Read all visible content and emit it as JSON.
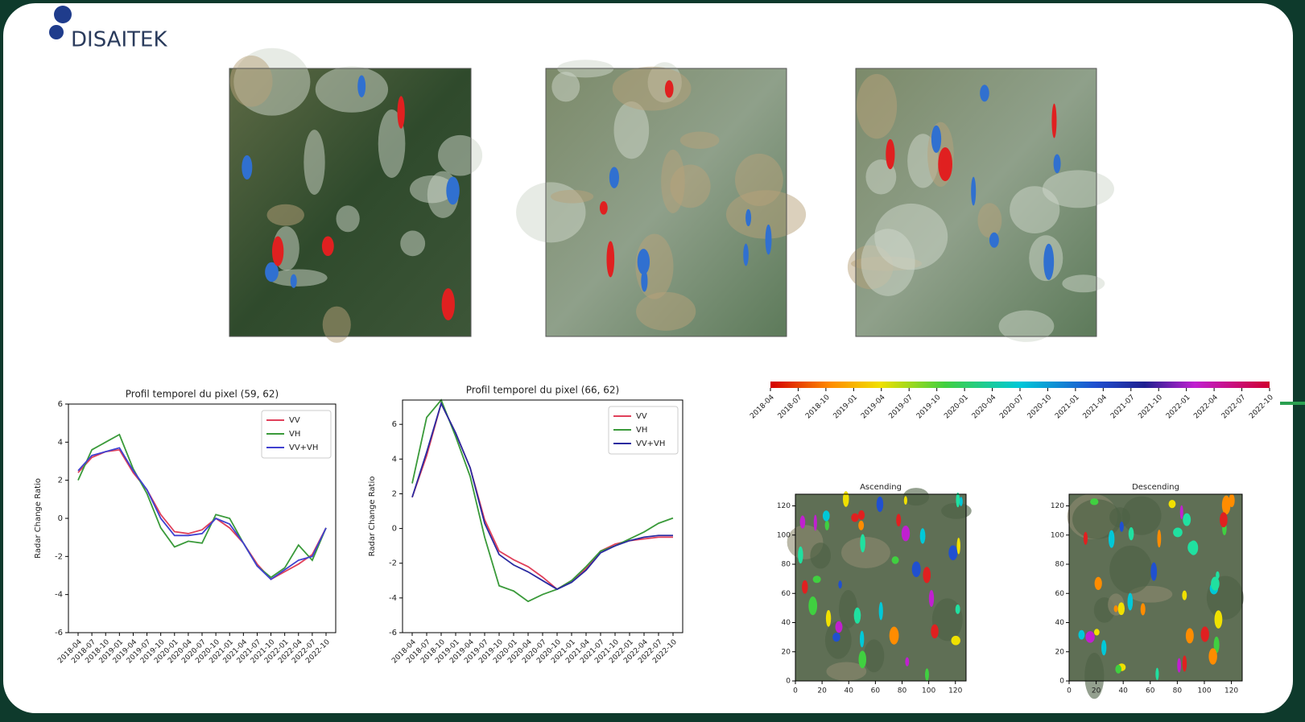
{
  "logo": "DISAITEK",
  "chart_data": [
    {
      "type": "line",
      "title": "Profil temporel du pixel (59, 62)",
      "y_label": "Radar Change Ratio",
      "categories": [
        "2018-04",
        "2018-07",
        "2018-10",
        "2019-01",
        "2019-04",
        "2019-07",
        "2019-10",
        "2020-01",
        "2020-04",
        "2020-07",
        "2020-10",
        "2021-01",
        "2021-04",
        "2021-07",
        "2021-10",
        "2022-01",
        "2022-04",
        "2022-07",
        "2022-10"
      ],
      "series": [
        {
          "name": "VV",
          "color": "#e0405a",
          "values": [
            2.4,
            3.2,
            3.5,
            3.6,
            2.4,
            1.5,
            0.2,
            -0.7,
            -0.8,
            -0.6,
            0.0,
            -0.5,
            -1.3,
            -2.4,
            -3.2,
            -2.8,
            -2.4,
            -1.9,
            -0.5
          ]
        },
        {
          "name": "VH",
          "color": "#3a9a3a",
          "values": [
            2.0,
            3.6,
            4.0,
            4.4,
            2.6,
            1.3,
            -0.5,
            -1.5,
            -1.2,
            -1.3,
            0.2,
            0.0,
            -1.3,
            -2.5,
            -3.1,
            -2.6,
            -1.4,
            -2.2,
            -0.5
          ]
        },
        {
          "name": "VV+VH",
          "color": "#4040d0",
          "values": [
            2.5,
            3.3,
            3.5,
            3.7,
            2.5,
            1.5,
            0.0,
            -0.9,
            -0.9,
            -0.8,
            0.0,
            -0.3,
            -1.3,
            -2.5,
            -3.2,
            -2.7,
            -2.2,
            -2.0,
            -0.5
          ]
        }
      ],
      "ylim": [
        -6,
        6
      ],
      "yticks": [
        -6,
        -4,
        -2,
        0,
        2,
        4,
        6
      ],
      "legend": "upper right"
    },
    {
      "type": "line",
      "title": "Profil temporel du pixel (66, 62)",
      "y_label": "Radar Change Ratio",
      "categories": [
        "2018-04",
        "2018-07",
        "2018-10",
        "2019-01",
        "2019-04",
        "2019-07",
        "2019-10",
        "2020-01",
        "2020-04",
        "2020-07",
        "2020-10",
        "2021-01",
        "2021-04",
        "2021-07",
        "2021-10",
        "2022-01",
        "2022-04",
        "2022-07",
        "2022-10"
      ],
      "series": [
        {
          "name": "VV",
          "color": "#e0405a",
          "values": [
            1.8,
            4.2,
            7.2,
            5.5,
            3.5,
            0.5,
            -1.3,
            -1.8,
            -2.2,
            -2.8,
            -3.5,
            -3.0,
            -2.3,
            -1.3,
            -0.9,
            -0.7,
            -0.6,
            -0.5,
            -0.5
          ]
        },
        {
          "name": "VH",
          "color": "#3a9a3a",
          "values": [
            2.6,
            6.4,
            7.4,
            5.3,
            3.0,
            -0.5,
            -3.3,
            -3.6,
            -4.2,
            -3.8,
            -3.5,
            -3.0,
            -2.2,
            -1.3,
            -1.0,
            -0.6,
            -0.2,
            0.3,
            0.6
          ]
        },
        {
          "name": "VV+VH",
          "color": "#2a2aa0",
          "values": [
            1.8,
            4.4,
            7.2,
            5.5,
            3.5,
            0.3,
            -1.5,
            -2.1,
            -2.5,
            -3.0,
            -3.5,
            -3.1,
            -2.4,
            -1.4,
            -1.0,
            -0.7,
            -0.5,
            -0.4,
            -0.4
          ]
        }
      ],
      "ylim": [
        -6,
        7.4
      ],
      "yticks": [
        -6,
        -4,
        -2,
        0,
        2,
        4,
        6
      ],
      "legend": "upper right"
    },
    {
      "type": "colorbar",
      "categories": [
        "2018-04",
        "2018-07",
        "2018-10",
        "2019-01",
        "2019-04",
        "2019-07",
        "2019-10",
        "2020-01",
        "2020-04",
        "2020-07",
        "2020-10",
        "2021-01",
        "2021-04",
        "2021-07",
        "2021-10",
        "2022-01",
        "2022-04",
        "2022-07",
        "2022-10"
      ]
    },
    {
      "type": "image",
      "title": "Ascending",
      "xlim": [
        0,
        128
      ],
      "ylim": [
        0,
        128
      ],
      "xticks": [
        0,
        20,
        40,
        60,
        80,
        100,
        120
      ],
      "yticks": [
        0,
        20,
        40,
        60,
        80,
        100,
        120
      ]
    },
    {
      "type": "image",
      "title": "Descending",
      "xlim": [
        0,
        128
      ],
      "ylim": [
        0,
        128
      ],
      "xticks": [
        0,
        20,
        40,
        60,
        80,
        100,
        120
      ],
      "yticks": [
        0,
        20,
        40,
        60,
        80,
        100,
        120
      ]
    }
  ]
}
